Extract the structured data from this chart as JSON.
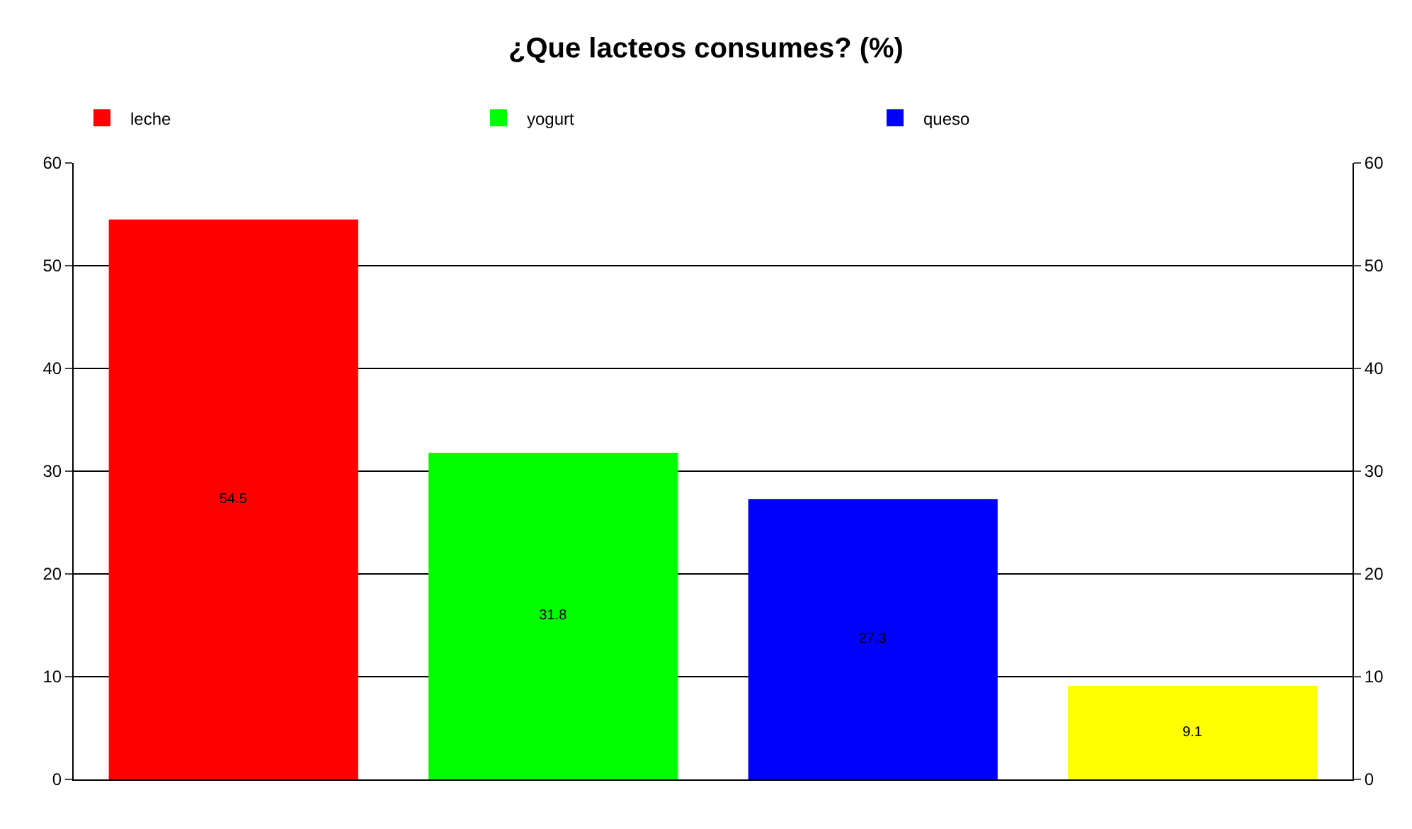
{
  "chart_data": {
    "type": "bar",
    "title": "¿Que lacteos consumes? (%)",
    "categories": [
      null,
      null,
      null,
      null
    ],
    "series": [
      {
        "name": "leche",
        "color": "#ff0000",
        "values": [
          54.5,
          null,
          null,
          null
        ]
      },
      {
        "name": "yogurt",
        "color": "#00ff00",
        "values": [
          null,
          31.8,
          null,
          null
        ]
      },
      {
        "name": "queso",
        "color": "#0000ff",
        "values": [
          null,
          null,
          27.3,
          null
        ]
      },
      {
        "color": "#ffff00",
        "values": [
          null,
          null,
          null,
          9.1
        ]
      }
    ],
    "ylim": [
      0,
      60
    ],
    "yticks": [
      0,
      10,
      20,
      30,
      40,
      50,
      60
    ],
    "y2lim": [
      0,
      60
    ],
    "y2ticks": [
      0,
      10,
      20,
      30,
      40,
      50,
      60
    ],
    "data_labels": true,
    "grid": "y",
    "legend": "top",
    "tick_labels": "y"
  }
}
